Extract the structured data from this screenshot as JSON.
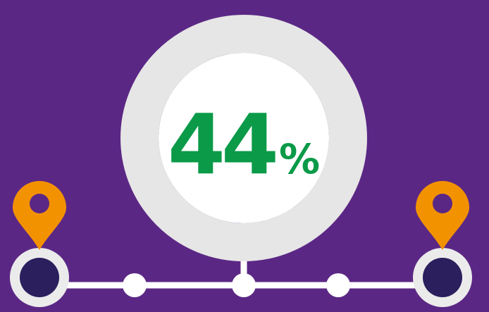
{
  "colors": {
    "background": "#5b2785",
    "progress": "#0a9a48",
    "track": "#e6e6e6",
    "inner": "#ffffff",
    "text": "#0a9a48",
    "pin": "#f39200",
    "node_fill": "#2b1f5e",
    "node_ring": "#ebebeb",
    "line": "#ffffff"
  },
  "progress": {
    "value_fraction": 0.44,
    "number": "44",
    "unit": "%"
  },
  "icons": {
    "left_pin": "location-pin-icon",
    "right_pin": "location-pin-icon"
  }
}
